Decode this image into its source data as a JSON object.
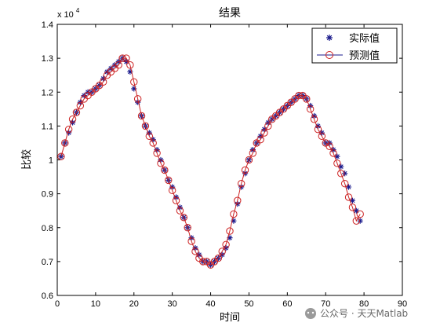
{
  "chart_data": {
    "type": "line",
    "title": "结果",
    "xlabel": "时间",
    "ylabel": "比较",
    "y_exponent": "x 10",
    "y_exponent_power": "4",
    "xlim": [
      0,
      90
    ],
    "ylim": [
      0.6,
      1.4
    ],
    "xticks": [
      "0",
      "10",
      "20",
      "30",
      "40",
      "50",
      "60",
      "70",
      "80",
      "90"
    ],
    "yticks": [
      "0.6",
      "0.7",
      "0.8",
      "0.9",
      "1",
      "1.1",
      "1.2",
      "1.3",
      "1.4"
    ],
    "legend_placement": "top-right",
    "grid": false,
    "series": [
      {
        "name": "实际值",
        "color": "#1a1a8c",
        "marker": "star",
        "values": [
          1.01,
          1.05,
          1.08,
          1.11,
          1.14,
          1.17,
          1.19,
          1.2,
          1.2,
          1.21,
          1.22,
          1.24,
          1.26,
          1.27,
          1.28,
          1.29,
          1.3,
          1.29,
          1.26,
          1.21,
          1.17,
          1.13,
          1.1,
          1.08,
          1.06,
          1.03,
          1.0,
          0.97,
          0.94,
          0.92,
          0.89,
          0.86,
          0.83,
          0.8,
          0.77,
          0.74,
          0.72,
          0.7,
          0.7,
          0.69,
          0.7,
          0.71,
          0.72,
          0.74,
          0.77,
          0.82,
          0.87,
          0.92,
          0.96,
          1.0,
          1.03,
          1.05,
          1.07,
          1.09,
          1.11,
          1.12,
          1.13,
          1.14,
          1.15,
          1.16,
          1.17,
          1.18,
          1.19,
          1.19,
          1.18,
          1.16,
          1.13,
          1.1,
          1.08,
          1.05,
          1.05,
          1.03,
          1.01,
          0.98,
          0.96,
          0.92,
          0.88,
          0.85,
          0.82
        ]
      },
      {
        "name": "预测值",
        "color": "#cc2222",
        "marker": "circle",
        "values": [
          1.01,
          1.05,
          1.09,
          1.12,
          1.14,
          1.16,
          1.18,
          1.19,
          1.2,
          1.21,
          1.22,
          1.23,
          1.25,
          1.26,
          1.27,
          1.28,
          1.3,
          1.3,
          1.28,
          1.23,
          1.18,
          1.13,
          1.1,
          1.07,
          1.05,
          1.02,
          0.99,
          0.97,
          0.94,
          0.91,
          0.88,
          0.85,
          0.83,
          0.8,
          0.76,
          0.73,
          0.71,
          0.7,
          0.7,
          0.69,
          0.7,
          0.71,
          0.73,
          0.75,
          0.79,
          0.84,
          0.88,
          0.93,
          0.97,
          1.0,
          1.02,
          1.05,
          1.06,
          1.08,
          1.1,
          1.12,
          1.13,
          1.14,
          1.15,
          1.16,
          1.17,
          1.18,
          1.19,
          1.19,
          1.18,
          1.15,
          1.12,
          1.09,
          1.07,
          1.05,
          1.04,
          1.02,
          0.99,
          0.96,
          0.93,
          0.89,
          0.86,
          0.82,
          0.84
        ]
      }
    ]
  },
  "watermark": "公众号 · 天天Matlab"
}
